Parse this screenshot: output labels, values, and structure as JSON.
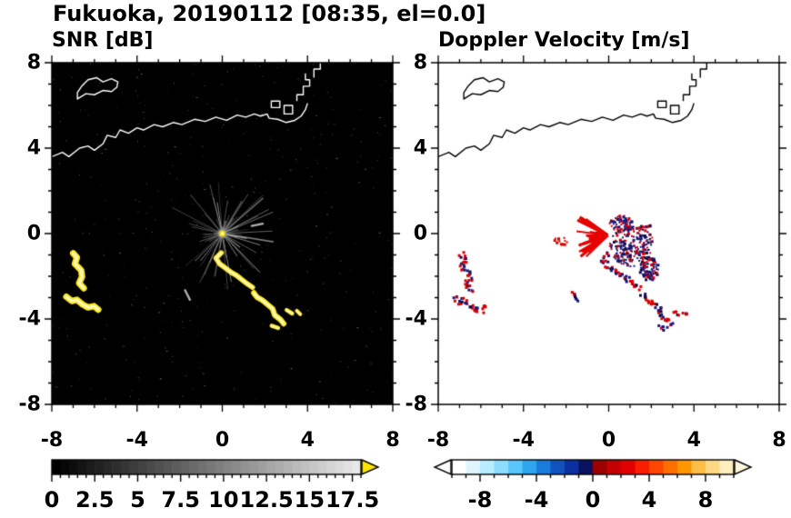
{
  "chart_data": {
    "type": "radar-ppi",
    "title": "Fukuoka, 20190112 [08:35, el=0.0]",
    "panels": [
      {
        "id": "snr",
        "title": "SNR [dB]",
        "background": "#000000",
        "coast_color": "#ffffff"
      },
      {
        "id": "doppler",
        "title": "Doppler Velocity [m/s]",
        "background": "#ffffff",
        "coast_color": "#000000"
      }
    ],
    "axis": {
      "xmin": -8,
      "xmax": 8,
      "ymin": -8,
      "ymax": 8,
      "minor_step": 1,
      "major_step": 4,
      "major_values": [
        -8,
        -4,
        0,
        4,
        8
      ],
      "major_labels": [
        "-8",
        "-4",
        "0",
        "4",
        "8"
      ],
      "grid": false
    },
    "coastline": {
      "polylines": [
        [
          [
            -8,
            3.6
          ],
          [
            -7.5,
            3.8
          ],
          [
            -7.2,
            3.6
          ],
          [
            -6.7,
            4.0
          ],
          [
            -6.3,
            4.1
          ],
          [
            -6.0,
            3.9
          ],
          [
            -5.6,
            4.2
          ],
          [
            -5.4,
            4.6
          ],
          [
            -5.0,
            4.5
          ],
          [
            -4.8,
            4.85
          ],
          [
            -4.4,
            4.7
          ],
          [
            -4.0,
            4.95
          ],
          [
            -3.7,
            4.85
          ],
          [
            -3.2,
            5.1
          ],
          [
            -2.8,
            5.0
          ],
          [
            -2.3,
            5.2
          ],
          [
            -1.9,
            5.1
          ],
          [
            -1.3,
            5.35
          ],
          [
            -0.8,
            5.25
          ],
          [
            -0.3,
            5.45
          ],
          [
            0.2,
            5.3
          ],
          [
            0.7,
            5.55
          ],
          [
            1.1,
            5.45
          ],
          [
            1.5,
            5.6
          ],
          [
            1.8,
            5.5
          ],
          [
            2.1,
            5.6
          ],
          [
            2.2,
            5.4
          ],
          [
            2.6,
            5.35
          ],
          [
            3.0,
            5.2
          ],
          [
            3.4,
            5.3
          ],
          [
            3.7,
            5.5
          ],
          [
            3.9,
            5.8
          ],
          [
            4.0,
            6.1
          ]
        ],
        [
          [
            3.5,
            6.2
          ],
          [
            3.5,
            6.5
          ],
          [
            3.8,
            6.5
          ],
          [
            3.8,
            6.9
          ],
          [
            4.1,
            6.9
          ],
          [
            4.1,
            7.2
          ],
          [
            3.9,
            7.2
          ],
          [
            3.9,
            7.5
          ]
        ],
        [
          [
            4.3,
            7.3
          ],
          [
            4.3,
            7.7
          ],
          [
            4.6,
            7.7
          ],
          [
            4.6,
            8.0
          ]
        ]
      ],
      "polygons": [
        [
          [
            -6.8,
            6.3
          ],
          [
            -6.4,
            6.55
          ],
          [
            -6.0,
            6.5
          ],
          [
            -5.6,
            6.7
          ],
          [
            -5.2,
            6.65
          ],
          [
            -4.95,
            6.85
          ],
          [
            -4.9,
            7.1
          ],
          [
            -5.2,
            7.25
          ],
          [
            -5.6,
            7.1
          ],
          [
            -5.9,
            7.3
          ],
          [
            -6.3,
            7.2
          ],
          [
            -6.6,
            6.9
          ],
          [
            -6.8,
            6.6
          ]
        ],
        [
          [
            2.3,
            5.9
          ],
          [
            2.3,
            6.2
          ],
          [
            2.7,
            6.2
          ],
          [
            2.7,
            5.9
          ]
        ],
        [
          [
            2.9,
            5.6
          ],
          [
            3.3,
            5.6
          ],
          [
            3.3,
            6.0
          ],
          [
            2.9,
            6.0
          ]
        ]
      ]
    },
    "clutter": {
      "center": [
        0,
        0
      ],
      "spoke_count": 85,
      "min_len": 0.25,
      "max_len": 2.7,
      "seed": 13
    },
    "noise": {
      "count": 380,
      "seed": 5,
      "min_gray": 30,
      "max_gray": 110
    },
    "echo_chains": [
      {
        "name": "main-arc-upper",
        "snr_style": "yellow",
        "width": 0.24,
        "points": [
          [
            -0.05,
            -0.9
          ],
          [
            -0.3,
            -1.15
          ],
          [
            -0.12,
            -1.42
          ],
          [
            0.15,
            -1.62
          ],
          [
            0.42,
            -1.82
          ],
          [
            0.68,
            -1.97
          ],
          [
            0.92,
            -2.16
          ],
          [
            1.18,
            -2.36
          ],
          [
            1.42,
            -2.52
          ]
        ]
      },
      {
        "name": "main-arc-lower",
        "snr_style": "yellow",
        "width": 0.26,
        "points": [
          [
            1.48,
            -2.78
          ],
          [
            1.62,
            -2.97
          ],
          [
            1.88,
            -3.12
          ],
          [
            2.12,
            -3.32
          ],
          [
            2.36,
            -3.52
          ],
          [
            2.46,
            -3.82
          ],
          [
            2.72,
            -4.02
          ],
          [
            2.88,
            -4.22
          ]
        ]
      },
      {
        "name": "tail-1",
        "snr_style": "yellow",
        "width": 0.2,
        "points": [
          [
            3.02,
            -3.58
          ],
          [
            3.28,
            -3.74
          ]
        ]
      },
      {
        "name": "tail-2",
        "snr_style": "yellow",
        "width": 0.18,
        "points": [
          [
            3.5,
            -3.62
          ],
          [
            3.66,
            -3.78
          ]
        ]
      },
      {
        "name": "tail-3",
        "snr_style": "yellow",
        "width": 0.2,
        "points": [
          [
            2.32,
            -4.32
          ],
          [
            2.62,
            -4.42
          ]
        ]
      },
      {
        "name": "west-chain-north",
        "snr_style": "yellow",
        "width": 0.3,
        "points": [
          [
            -7.0,
            -0.92
          ],
          [
            -6.82,
            -1.12
          ],
          [
            -6.92,
            -1.42
          ],
          [
            -6.62,
            -1.72
          ],
          [
            -6.58,
            -2.02
          ],
          [
            -6.72,
            -2.32
          ],
          [
            -6.5,
            -2.56
          ]
        ]
      },
      {
        "name": "west-chain-south",
        "snr_style": "yellow",
        "width": 0.3,
        "points": [
          [
            -7.32,
            -2.96
          ],
          [
            -7.06,
            -3.16
          ],
          [
            -6.82,
            -3.1
          ],
          [
            -6.56,
            -3.32
          ],
          [
            -6.3,
            -3.46
          ],
          [
            -6.02,
            -3.4
          ],
          [
            -5.82,
            -3.56
          ]
        ]
      },
      {
        "name": "sw-dash",
        "snr_style": "gray",
        "width": 0.1,
        "points": [
          [
            -1.75,
            -2.65
          ],
          [
            -1.52,
            -3.1
          ]
        ]
      },
      {
        "name": "east-dash",
        "snr_style": "gray",
        "width": 0.1,
        "points": [
          [
            1.38,
            0.36
          ],
          [
            1.9,
            0.46
          ]
        ]
      }
    ],
    "doppler_features": {
      "red_fan": {
        "origin": [
          -0.05,
          -0.08
        ],
        "angle_start_deg": 140,
        "angle_end_deg": 228,
        "count": 34,
        "min_len": 0.35,
        "max_len": 1.65,
        "seed": 31,
        "color": "#e60000"
      },
      "speckle_clusters": [
        {
          "name": "center-east",
          "center": [
            1.05,
            -0.55
          ],
          "rx": 1.05,
          "ry": 0.95,
          "count": 220,
          "seed": 41,
          "colors": [
            "#16167a",
            "#0a0a46",
            "#d80000"
          ],
          "weights": [
            0.5,
            0.2,
            0.3
          ]
        },
        {
          "name": "center-north",
          "center": [
            0.55,
            0.5
          ],
          "rx": 0.55,
          "ry": 0.4,
          "count": 80,
          "seed": 42,
          "colors": [
            "#16167a",
            "#d80000"
          ],
          "weights": [
            0.6,
            0.4
          ]
        },
        {
          "name": "southeast-streak",
          "center": [
            1.85,
            -1.6
          ],
          "rx": 0.45,
          "ry": 0.55,
          "count": 90,
          "seed": 43,
          "colors": [
            "#16167a",
            "#0a0a46",
            "#d80000"
          ],
          "weights": [
            0.55,
            0.25,
            0.2
          ]
        },
        {
          "name": "west-specks",
          "center": [
            -2.3,
            -0.3
          ],
          "rx": 0.35,
          "ry": 0.18,
          "count": 14,
          "seed": 44,
          "colors": [
            "#d80000"
          ],
          "weights": [
            1
          ]
        }
      ]
    },
    "colorbars": {
      "snr": {
        "min": 0,
        "max": 18,
        "segments": 36,
        "tick_minor_step": 0.5,
        "label_values": [
          0,
          2.5,
          5,
          7.5,
          10,
          12.5,
          15,
          17.5
        ],
        "labels": [
          "0",
          "2.5",
          "5",
          "7.5",
          "10",
          "12.5",
          "15",
          "17.5"
        ],
        "gray_start": 0,
        "gray_end": 232,
        "over_color": "#ffe400"
      },
      "doppler": {
        "min": -10,
        "max": 10,
        "tick_minor_step": 1,
        "label_values": [
          -8,
          -4,
          0,
          4,
          8
        ],
        "labels": [
          "-8",
          "-4",
          "0",
          "4",
          "8"
        ],
        "colors": [
          "#ffffff",
          "#dff6ff",
          "#b8ecff",
          "#8cdcff",
          "#58c6f8",
          "#2ea6ee",
          "#1a7cda",
          "#1252c0",
          "#0c309e",
          "#0a1260",
          "#9c0000",
          "#c40000",
          "#e20000",
          "#fa1e00",
          "#ff4600",
          "#ff6e00",
          "#ff9600",
          "#ffbe46",
          "#ffd884",
          "#ffeebe"
        ],
        "under_color": "#ffffff",
        "over_color": "#fff6dc"
      }
    }
  }
}
